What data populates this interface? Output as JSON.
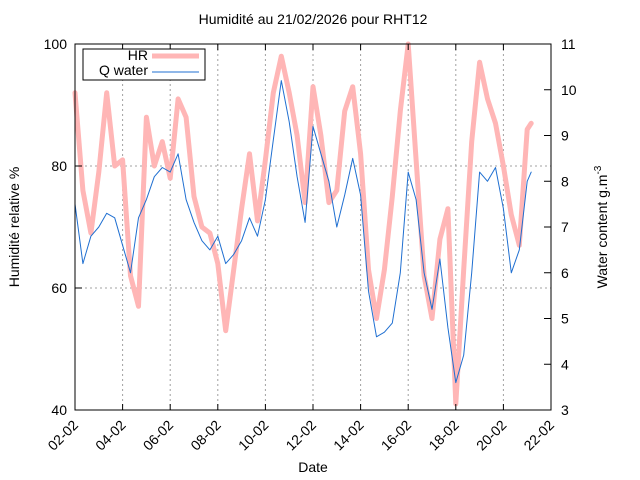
{
  "chart_data": {
    "type": "line",
    "title": "Humidité au 21/02/2026 pour RHT12",
    "xlabel": "Date",
    "ylabel": "Humidité relative %",
    "y2label_main": "Water content g.m",
    "y2label_sup": "-3",
    "grid": true,
    "legend_position": "top-left",
    "x_axis": {
      "type": "date",
      "range": [
        "2026-02-02",
        "2026-02-22"
      ],
      "tick_labels": [
        "02-02",
        "04-02",
        "06-02",
        "08-02",
        "10-02",
        "12-02",
        "14-02",
        "16-02",
        "18-02",
        "20-02",
        "22-02"
      ]
    },
    "y_axis": {
      "range": [
        40,
        100
      ],
      "ticks": [
        "40",
        "60",
        "80",
        "100"
      ]
    },
    "y2_axis": {
      "range": [
        3,
        11
      ],
      "ticks": [
        "3",
        "4",
        "5",
        "6",
        "7",
        "8",
        "9",
        "10",
        "11"
      ]
    },
    "series": [
      {
        "name": "HR",
        "axis": "y",
        "color": "#ffb6b6",
        "points": [
          [
            "2026-02-02 00:00",
            92
          ],
          [
            "2026-02-02 08:00",
            76
          ],
          [
            "2026-02-02 16:00",
            69
          ],
          [
            "2026-02-03 00:00",
            79
          ],
          [
            "2026-02-03 08:00",
            92
          ],
          [
            "2026-02-03 16:00",
            80
          ],
          [
            "2026-02-04 00:00",
            81
          ],
          [
            "2026-02-04 08:00",
            62
          ],
          [
            "2026-02-04 16:00",
            57
          ],
          [
            "2026-02-05 00:00",
            88
          ],
          [
            "2026-02-05 08:00",
            80
          ],
          [
            "2026-02-05 16:00",
            84
          ],
          [
            "2026-02-06 00:00",
            78
          ],
          [
            "2026-02-06 08:00",
            91
          ],
          [
            "2026-02-06 16:00",
            88
          ],
          [
            "2026-02-07 00:00",
            75
          ],
          [
            "2026-02-07 08:00",
            70
          ],
          [
            "2026-02-07 16:00",
            69
          ],
          [
            "2026-02-08 00:00",
            64
          ],
          [
            "2026-02-08 08:00",
            53
          ],
          [
            "2026-02-08 16:00",
            63
          ],
          [
            "2026-02-09 00:00",
            73
          ],
          [
            "2026-02-09 08:00",
            82
          ],
          [
            "2026-02-09 16:00",
            71
          ],
          [
            "2026-02-10 00:00",
            81
          ],
          [
            "2026-02-10 08:00",
            92
          ],
          [
            "2026-02-10 16:00",
            98
          ],
          [
            "2026-02-11 00:00",
            92
          ],
          [
            "2026-02-11 08:00",
            85
          ],
          [
            "2026-02-11 16:00",
            74
          ],
          [
            "2026-02-12 00:00",
            93
          ],
          [
            "2026-02-12 08:00",
            85
          ],
          [
            "2026-02-12 16:00",
            74
          ],
          [
            "2026-02-13 00:00",
            76
          ],
          [
            "2026-02-13 08:00",
            89
          ],
          [
            "2026-02-13 16:00",
            93
          ],
          [
            "2026-02-14 00:00",
            82
          ],
          [
            "2026-02-14 08:00",
            63
          ],
          [
            "2026-02-14 16:00",
            55
          ],
          [
            "2026-02-15 00:00",
            63
          ],
          [
            "2026-02-15 08:00",
            75
          ],
          [
            "2026-02-15 16:00",
            89
          ],
          [
            "2026-02-16 00:00",
            100
          ],
          [
            "2026-02-16 08:00",
            81
          ],
          [
            "2026-02-16 16:00",
            62
          ],
          [
            "2026-02-17 00:00",
            55
          ],
          [
            "2026-02-17 08:00",
            68
          ],
          [
            "2026-02-17 16:00",
            73
          ],
          [
            "2026-02-18 00:00",
            41
          ],
          [
            "2026-02-18 08:00",
            63
          ],
          [
            "2026-02-18 16:00",
            84
          ],
          [
            "2026-02-19 00:00",
            97
          ],
          [
            "2026-02-19 08:00",
            91
          ],
          [
            "2026-02-19 16:00",
            87
          ],
          [
            "2026-02-20 00:00",
            80
          ],
          [
            "2026-02-20 08:00",
            72
          ],
          [
            "2026-02-20 16:00",
            67
          ],
          [
            "2026-02-21 00:00",
            86
          ],
          [
            "2026-02-21 04:00",
            87
          ]
        ]
      },
      {
        "name": "Q water",
        "axis": "y2",
        "color": "#1f6fd1",
        "points": [
          [
            "2026-02-02 00:00",
            7.5
          ],
          [
            "2026-02-02 08:00",
            6.2
          ],
          [
            "2026-02-02 16:00",
            6.8
          ],
          [
            "2026-02-03 00:00",
            7.0
          ],
          [
            "2026-02-03 08:00",
            7.3
          ],
          [
            "2026-02-03 16:00",
            7.2
          ],
          [
            "2026-02-04 00:00",
            6.6
          ],
          [
            "2026-02-04 08:00",
            6.0
          ],
          [
            "2026-02-04 16:00",
            7.2
          ],
          [
            "2026-02-05 00:00",
            7.6
          ],
          [
            "2026-02-05 08:00",
            8.1
          ],
          [
            "2026-02-05 16:00",
            8.3
          ],
          [
            "2026-02-06 00:00",
            8.2
          ],
          [
            "2026-02-06 08:00",
            8.6
          ],
          [
            "2026-02-06 16:00",
            7.6
          ],
          [
            "2026-02-07 00:00",
            7.1
          ],
          [
            "2026-02-07 08:00",
            6.7
          ],
          [
            "2026-02-07 16:00",
            6.5
          ],
          [
            "2026-02-08 00:00",
            6.8
          ],
          [
            "2026-02-08 08:00",
            6.2
          ],
          [
            "2026-02-08 16:00",
            6.4
          ],
          [
            "2026-02-09 00:00",
            6.7
          ],
          [
            "2026-02-09 08:00",
            7.2
          ],
          [
            "2026-02-09 16:00",
            6.8
          ],
          [
            "2026-02-10 00:00",
            7.6
          ],
          [
            "2026-02-10 08:00",
            8.9
          ],
          [
            "2026-02-10 16:00",
            10.2
          ],
          [
            "2026-02-11 00:00",
            9.3
          ],
          [
            "2026-02-11 08:00",
            8.1
          ],
          [
            "2026-02-11 16:00",
            7.1
          ],
          [
            "2026-02-12 00:00",
            9.2
          ],
          [
            "2026-02-12 08:00",
            8.6
          ],
          [
            "2026-02-12 16:00",
            8.0
          ],
          [
            "2026-02-13 00:00",
            7.0
          ],
          [
            "2026-02-13 08:00",
            7.7
          ],
          [
            "2026-02-13 16:00",
            8.5
          ],
          [
            "2026-02-14 00:00",
            7.7
          ],
          [
            "2026-02-14 08:00",
            5.6
          ],
          [
            "2026-02-14 16:00",
            4.6
          ],
          [
            "2026-02-15 00:00",
            4.7
          ],
          [
            "2026-02-15 08:00",
            4.9
          ],
          [
            "2026-02-15 16:00",
            6.0
          ],
          [
            "2026-02-16 00:00",
            8.2
          ],
          [
            "2026-02-16 08:00",
            7.6
          ],
          [
            "2026-02-16 16:00",
            6.0
          ],
          [
            "2026-02-17 00:00",
            5.2
          ],
          [
            "2026-02-17 08:00",
            6.3
          ],
          [
            "2026-02-17 16:00",
            4.8
          ],
          [
            "2026-02-18 00:00",
            3.6
          ],
          [
            "2026-02-18 08:00",
            4.2
          ],
          [
            "2026-02-18 16:00",
            6.0
          ],
          [
            "2026-02-19 00:00",
            8.2
          ],
          [
            "2026-02-19 08:00",
            8.0
          ],
          [
            "2026-02-19 16:00",
            8.3
          ],
          [
            "2026-02-20 00:00",
            7.4
          ],
          [
            "2026-02-20 08:00",
            6.0
          ],
          [
            "2026-02-20 16:00",
            6.5
          ],
          [
            "2026-02-21 00:00",
            8.0
          ],
          [
            "2026-02-21 04:00",
            8.2
          ]
        ]
      }
    ]
  }
}
